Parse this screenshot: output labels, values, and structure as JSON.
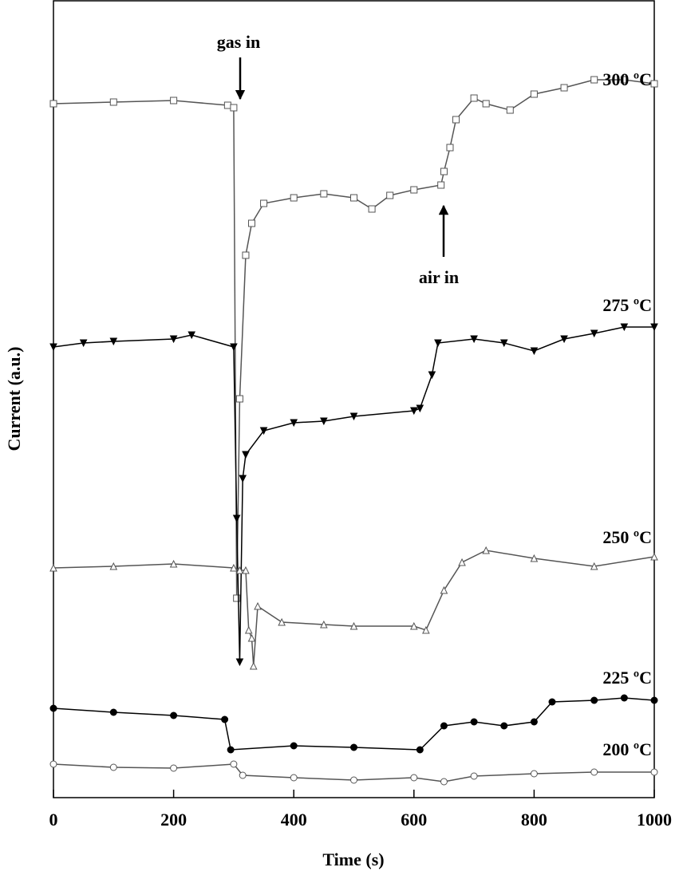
{
  "chart_data": {
    "type": "line",
    "x_label": "Time (s)",
    "y_label": "Current (a.u.)",
    "xlim": [
      0,
      1000
    ],
    "xticks": [
      0,
      200,
      400,
      600,
      800,
      1000
    ],
    "ylim": [
      0,
      100
    ],
    "annotations": [
      "gas in",
      "air in"
    ],
    "series": [
      {
        "name": "300 ºC",
        "color": "#555555",
        "marker": "square-open",
        "x": [
          0,
          100,
          200,
          290,
          300,
          305,
          310,
          320,
          330,
          350,
          400,
          450,
          500,
          530,
          560,
          600,
          645,
          650,
          660,
          670,
          700,
          720,
          760,
          800,
          850,
          900,
          950,
          1000
        ],
        "values": [
          87,
          87.2,
          87.4,
          86.8,
          86.5,
          25,
          50,
          68,
          72,
          74.5,
          75.2,
          75.7,
          75.2,
          73.8,
          75.5,
          76.2,
          76.8,
          78.5,
          81.5,
          85,
          87.7,
          87,
          86.2,
          88.2,
          89,
          90,
          90,
          89.5
        ]
      },
      {
        "name": "275 ºC",
        "color": "#000000",
        "marker": "triangle-down-filled",
        "x": [
          0,
          50,
          100,
          200,
          230,
          300,
          305,
          310,
          315,
          320,
          350,
          400,
          450,
          500,
          600,
          610,
          630,
          640,
          700,
          750,
          800,
          850,
          900,
          950,
          1000
        ],
        "values": [
          56.5,
          57,
          57.2,
          57.5,
          58,
          56.5,
          35,
          17,
          40,
          43,
          46,
          47,
          47.2,
          47.8,
          48.5,
          48.8,
          53,
          57,
          57.5,
          57,
          56,
          57.5,
          58.2,
          59,
          59
        ]
      },
      {
        "name": "250 ºC",
        "color": "#555555",
        "marker": "triangle-open",
        "x": [
          0,
          100,
          200,
          300,
          310,
          320,
          325,
          330,
          333,
          340,
          380,
          450,
          500,
          600,
          620,
          650,
          680,
          720,
          800,
          900,
          1000
        ],
        "values": [
          28.8,
          29,
          29.3,
          28.8,
          28.5,
          28.5,
          21,
          20,
          16.5,
          24,
          22,
          21.7,
          21.5,
          21.5,
          21,
          26,
          29.5,
          31,
          30,
          29,
          30.2
        ]
      },
      {
        "name": "225 ºC",
        "color": "#000000",
        "marker": "circle-filled",
        "x": [
          0,
          100,
          200,
          285,
          295,
          400,
          500,
          610,
          650,
          700,
          750,
          800,
          830,
          900,
          950,
          1000
        ],
        "values": [
          11.2,
          10.7,
          10.3,
          9.8,
          6,
          6.5,
          6.3,
          6,
          9,
          9.5,
          9,
          9.5,
          12,
          12.2,
          12.5,
          12.2
        ]
      },
      {
        "name": "200 ºC",
        "color": "#555555",
        "marker": "circle-open",
        "x": [
          0,
          100,
          200,
          300,
          315,
          400,
          500,
          600,
          650,
          700,
          800,
          900,
          1000
        ],
        "values": [
          4.2,
          3.8,
          3.7,
          4.2,
          2.8,
          2.5,
          2.2,
          2.5,
          2,
          2.7,
          3,
          3.2,
          3.2
        ]
      }
    ]
  }
}
